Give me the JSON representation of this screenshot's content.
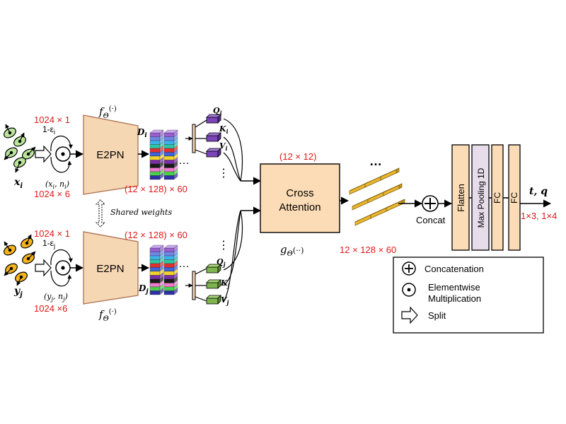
{
  "top_branch": {
    "input_symbol": "x",
    "input_sub": "i",
    "points_label": "1024 × 1",
    "normals_label": "1024 × 6",
    "epsilon_label": "1-ε",
    "epsilon_sub": "i",
    "pair_label": "(x",
    "pair_sub1": "i",
    "pair_mid": ", n",
    "pair_sub2": "i",
    "pair_end": ")",
    "encoder_label": "E2PN",
    "func_label": "f",
    "func_sub": "Θ",
    "func_args": "(·)",
    "feature_symbol": "D",
    "feature_sub": "i",
    "feature_shape": "(12 × 128) × 60",
    "q_label": "Q",
    "k_label": "K",
    "v_label": "V",
    "qkv_sub": "i"
  },
  "bottom_branch": {
    "input_symbol": "y",
    "input_sub": "j",
    "points_label": "1024 × 1",
    "normals_label": "1024 ×6",
    "epsilon_label": "1-ε",
    "epsilon_sub": "j",
    "pair_label": "(y",
    "pair_sub1": "j",
    "pair_mid": ", n",
    "pair_sub2": "j",
    "pair_end": ")",
    "encoder_label": "E2PN",
    "func_label": "f",
    "func_sub": "Θ",
    "func_args": "(·)",
    "feature_symbol": "D",
    "feature_sub": "j",
    "feature_shape": "(12 × 128) × 60",
    "q_label": "Q",
    "k_label": "K",
    "v_label": "V",
    "qkv_sub": "j"
  },
  "shared_weights": "Shared weights",
  "ellipsis": "…",
  "vertical_dots": "⋮",
  "cross_attention": {
    "line1": "Cross",
    "line2": "Attention",
    "size_label": "(12 × 12)",
    "func_label": "g",
    "func_sub": "Θ",
    "func_args": "(··)"
  },
  "fused_shape": "12 × 128 × 60",
  "concat_label": "Concat",
  "layers": [
    "Flatten",
    "Max Pooling 1D",
    "FC",
    "FC"
  ],
  "output_label": "t, q",
  "output_shape": "1×3,  1×4",
  "legend": {
    "concat": "Concatenation",
    "elementwise_1": "Elementwise",
    "elementwise_2": "Multiplication",
    "split": "Split"
  },
  "colors": {
    "encoder_fill": "#f6d7b4",
    "encoder_stroke": "#b2795a",
    "attention_fill": "#fbdcb6",
    "layer_fill": "#fbdcb6",
    "maxpool_fill": "#e6dcea",
    "top_point_fill": "#b9e59a",
    "bottom_point_fill": "#f4b21c",
    "qkv_top": "#7b45b8",
    "qkv_bottom": "#7fb44f",
    "fused_block": "#e9b62d",
    "annotation_red": "#e01818"
  },
  "icons": {
    "concat": "circle-plus-icon",
    "elementwise": "circle-dot-icon",
    "split": "hollow-arrow-icon"
  }
}
